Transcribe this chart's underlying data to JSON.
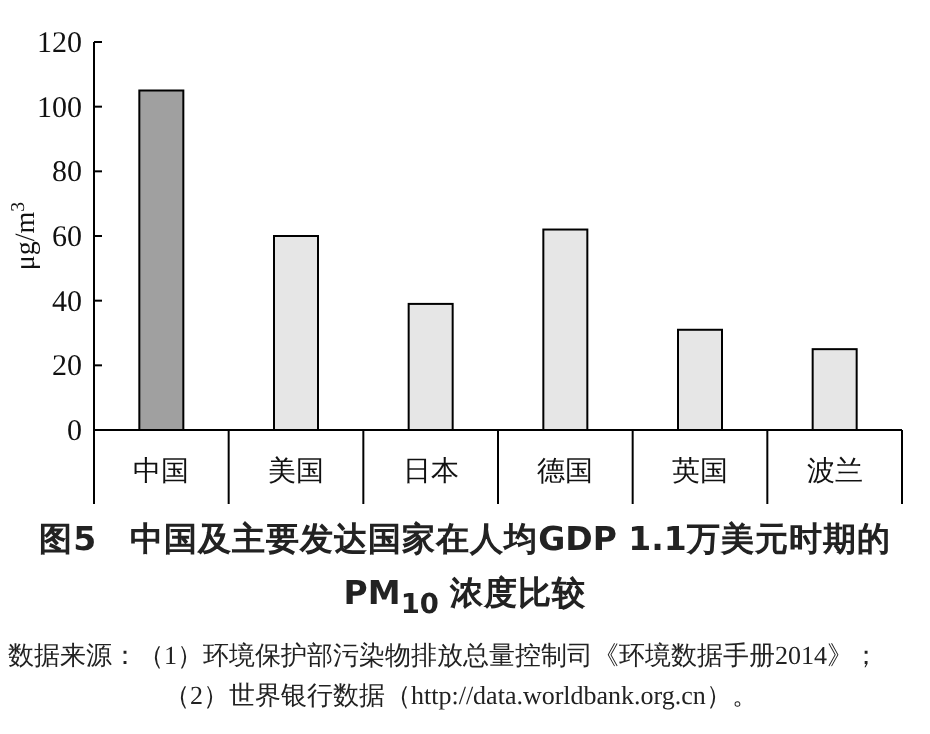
{
  "chart_data": {
    "type": "bar",
    "title": "图5　中国及主要发达国家在人均GDP 1.1万美元时期的PM$_{10}$ 浓度比较",
    "ylabel": "μg/m$^{3}$",
    "categories": [
      "中国",
      "美国",
      "日本",
      "德国",
      "英国",
      "波兰"
    ],
    "values": [
      105,
      60,
      39,
      62,
      31,
      25
    ],
    "colors": [
      "#a0a0a0",
      "#e6e6e6",
      "#e6e6e6",
      "#e6e6e6",
      "#e6e6e6",
      "#e6e6e6"
    ],
    "ylim": [
      0,
      120
    ],
    "yticks": [
      0,
      20,
      40,
      60,
      80,
      100,
      120
    ],
    "annotations": [
      "数据来源：（1）环境保护部污染物排放总量控制司《环境数据手册2014》；（2）世界银行数据（http://data.worldbank.org.cn）。"
    ]
  }
}
